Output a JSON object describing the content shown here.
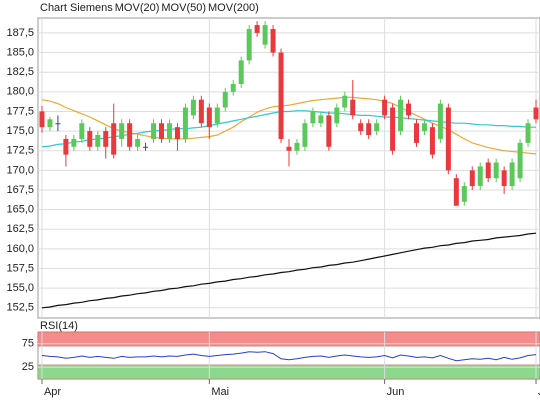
{
  "chart_data": [
    {
      "type": "candlestick",
      "name": "Chart Siemens",
      "name_color": "#d94040",
      "up_color": "#5cc85c",
      "down_color": "#e8393f",
      "doji_color": "#3040c0",
      "open": [
        177.5,
        175.5,
        176.0,
        174.0,
        173.0,
        174.0,
        175.0,
        173.0,
        175.0,
        176.0,
        174.0,
        176.0,
        173.0,
        173.0,
        174.0,
        176.0,
        174.0,
        175.5,
        174.0,
        177.0,
        179.0,
        178.0,
        176.0,
        178.0,
        180.0,
        181.0,
        184.0,
        188.5,
        186.0,
        188.0,
        185.0,
        173.0,
        172.5,
        173.0,
        176.0,
        176.0,
        177.0,
        176.0,
        178.0,
        179.0,
        176.0,
        176.0,
        175.0,
        179.0,
        178.0,
        175.0,
        178.5,
        176.0,
        175.0,
        175.5,
        174.0,
        178.0,
        169.0,
        166.0,
        170.0,
        168.0,
        171.0,
        169.0,
        170.0,
        168.0,
        169.0,
        173.5,
        178.0
      ],
      "high": [
        178.2,
        176.8,
        177.0,
        174.5,
        174.5,
        176.5,
        175.5,
        175.0,
        175.5,
        178.5,
        176.5,
        176.5,
        174.5,
        173.5,
        176.5,
        176.5,
        176.5,
        176.0,
        178.5,
        179.5,
        179.5,
        178.5,
        178.5,
        180.5,
        181.5,
        184.5,
        188.5,
        189.0,
        189.0,
        188.5,
        185.5,
        174.0,
        174.0,
        176.5,
        178.0,
        177.5,
        177.5,
        178.5,
        180.0,
        181.5,
        176.5,
        176.5,
        176.5,
        179.5,
        178.5,
        179.5,
        179.0,
        176.5,
        176.5,
        176.0,
        179.0,
        178.5,
        169.5,
        168.5,
        170.5,
        171.0,
        171.5,
        171.5,
        170.5,
        171.5,
        174.0,
        176.5,
        179.0
      ],
      "low": [
        174.8,
        175.0,
        175.0,
        170.5,
        172.5,
        173.5,
        172.5,
        172.5,
        171.5,
        171.5,
        173.0,
        172.5,
        172.5,
        172.5,
        173.5,
        173.5,
        173.5,
        172.5,
        173.5,
        176.5,
        175.5,
        174.0,
        175.5,
        177.5,
        179.5,
        180.5,
        183.5,
        187.0,
        185.5,
        184.5,
        173.5,
        170.5,
        172.0,
        172.5,
        175.5,
        175.5,
        172.5,
        175.5,
        177.5,
        176.5,
        174.5,
        174.0,
        174.5,
        176.5,
        172.0,
        174.5,
        176.5,
        173.0,
        174.5,
        171.5,
        173.5,
        169.5,
        165.5,
        165.5,
        167.5,
        167.5,
        168.5,
        168.5,
        167.0,
        167.5,
        168.5,
        173.0,
        176.0
      ],
      "close": [
        175.5,
        176.5,
        176.0,
        172.0,
        174.0,
        176.0,
        173.0,
        174.5,
        173.0,
        172.0,
        176.0,
        173.0,
        174.0,
        173.0,
        176.0,
        174.0,
        176.0,
        174.0,
        178.0,
        179.0,
        176.0,
        175.5,
        178.0,
        180.0,
        181.0,
        184.0,
        188.0,
        187.5,
        188.5,
        185.0,
        174.0,
        172.5,
        173.5,
        176.0,
        177.5,
        177.0,
        173.0,
        178.0,
        179.5,
        177.0,
        175.0,
        174.5,
        176.0,
        177.0,
        172.5,
        179.0,
        177.0,
        173.5,
        176.0,
        172.0,
        178.5,
        170.0,
        165.5,
        168.0,
        168.0,
        170.5,
        169.0,
        171.0,
        168.0,
        171.0,
        173.5,
        176.0,
        176.5
      ],
      "series": [
        {
          "name": "MOV(20)",
          "color": "#f0a830",
          "values": [
            179.0,
            178.8,
            178.5,
            178.0,
            177.6,
            177.2,
            176.8,
            176.3,
            175.8,
            175.3,
            175.0,
            174.8,
            174.6,
            174.4,
            174.2,
            174.1,
            174.0,
            174.0,
            174.0,
            174.1,
            174.2,
            174.3,
            174.5,
            175.0,
            175.5,
            176.2,
            176.8,
            177.4,
            177.8,
            178.1,
            178.2,
            178.3,
            178.5,
            178.7,
            178.9,
            179.0,
            179.1,
            179.2,
            179.3,
            179.3,
            179.2,
            179.1,
            179.0,
            178.8,
            178.5,
            178.0,
            177.5,
            177.0,
            176.5,
            176.0,
            175.6,
            175.2,
            174.6,
            174.0,
            173.5,
            173.2,
            172.9,
            172.7,
            172.5,
            172.4,
            172.3,
            172.2,
            172.1
          ]
        },
        {
          "name": "MOV(50)",
          "color": "#30c8d8",
          "values": [
            173.0,
            173.1,
            173.3,
            173.4,
            173.6,
            173.7,
            173.9,
            174.0,
            174.1,
            174.3,
            174.4,
            174.6,
            174.7,
            174.9,
            175.0,
            175.1,
            175.2,
            175.3,
            175.3,
            175.4,
            175.5,
            175.7,
            175.9,
            176.1,
            176.3,
            176.5,
            176.7,
            176.9,
            177.1,
            177.3,
            177.5,
            177.5,
            177.6,
            177.6,
            177.5,
            177.4,
            177.3,
            177.3,
            177.2,
            177.1,
            177.0,
            177.0,
            176.9,
            176.8,
            176.8,
            176.7,
            176.6,
            176.5,
            176.4,
            176.3,
            176.2,
            176.1,
            176.0,
            176.0,
            175.9,
            175.8,
            175.8,
            175.7,
            175.7,
            175.6,
            175.6,
            175.5,
            175.5
          ]
        },
        {
          "name": "MOV(200)",
          "color": "#111111",
          "values": [
            152.5,
            152.6,
            152.8,
            152.9,
            153.1,
            153.2,
            153.4,
            153.5,
            153.7,
            153.8,
            154.0,
            154.1,
            154.3,
            154.4,
            154.6,
            154.7,
            154.9,
            155.0,
            155.2,
            155.3,
            155.5,
            155.6,
            155.8,
            155.9,
            156.1,
            156.2,
            156.4,
            156.5,
            156.7,
            156.8,
            157.0,
            157.1,
            157.3,
            157.4,
            157.6,
            157.7,
            157.9,
            158.0,
            158.2,
            158.3,
            158.5,
            158.7,
            158.9,
            159.1,
            159.3,
            159.5,
            159.7,
            159.9,
            160.1,
            160.2,
            160.4,
            160.5,
            160.7,
            160.8,
            161.0,
            161.1,
            161.2,
            161.4,
            161.5,
            161.6,
            161.7,
            161.9,
            162.0
          ]
        }
      ],
      "ylim": [
        151.2,
        189.4
      ],
      "yticks": [
        {
          "value": 152.5,
          "label": "152,5"
        },
        {
          "value": 155,
          "label": "155,0"
        },
        {
          "value": 157.5,
          "label": "157,5"
        },
        {
          "value": 160,
          "label": "160,0"
        },
        {
          "value": 162.5,
          "label": "162,5"
        },
        {
          "value": 165,
          "label": "165,0"
        },
        {
          "value": 167.5,
          "label": "167,5"
        },
        {
          "value": 170,
          "label": "170,0"
        },
        {
          "value": 172.5,
          "label": "172,5"
        },
        {
          "value": 175,
          "label": "175,0"
        },
        {
          "value": 177.5,
          "label": "177,5"
        },
        {
          "value": 180,
          "label": "180,0"
        },
        {
          "value": 182.5,
          "label": "182,5"
        },
        {
          "value": 185,
          "label": "185,0"
        },
        {
          "value": 187.5,
          "label": "187,5"
        }
      ],
      "grid": true
    },
    {
      "type": "line",
      "title": "RSI(14)",
      "color": "#2a3ec8",
      "categories": [
        "Apr",
        null,
        null,
        null,
        null,
        null,
        null,
        null,
        null,
        null,
        null,
        null,
        null,
        null,
        null,
        null,
        null,
        null,
        null,
        null,
        null,
        "Mai",
        null,
        null,
        null,
        null,
        null,
        null,
        null,
        null,
        null,
        null,
        null,
        null,
        null,
        null,
        null,
        null,
        null,
        null,
        null,
        null,
        null,
        "Jun",
        null,
        null,
        null,
        null,
        null,
        null,
        null,
        null,
        null,
        null,
        null,
        null,
        null,
        null,
        null,
        null,
        null,
        null,
        "J"
      ],
      "values": [
        50,
        48,
        47,
        44,
        46,
        49,
        46,
        48,
        46,
        44,
        48,
        46,
        47,
        47,
        49,
        47,
        49,
        48,
        51,
        53,
        50,
        48,
        50,
        52,
        53,
        55,
        58,
        57,
        58,
        54,
        43,
        41,
        43,
        46,
        48,
        49,
        46,
        49,
        51,
        49,
        47,
        46,
        47,
        50,
        45,
        51,
        49,
        46,
        47,
        45,
        50,
        44,
        39,
        41,
        43,
        42,
        44,
        41,
        46,
        42,
        45,
        50,
        52
      ],
      "ylim": [
        0,
        100
      ],
      "yticks": [
        25,
        75
      ],
      "bands": [
        {
          "from": 70,
          "to": 100,
          "color": "#f48c8c"
        },
        {
          "from": 0,
          "to": 30,
          "color": "#8cd88c"
        }
      ],
      "grid": true
    }
  ]
}
